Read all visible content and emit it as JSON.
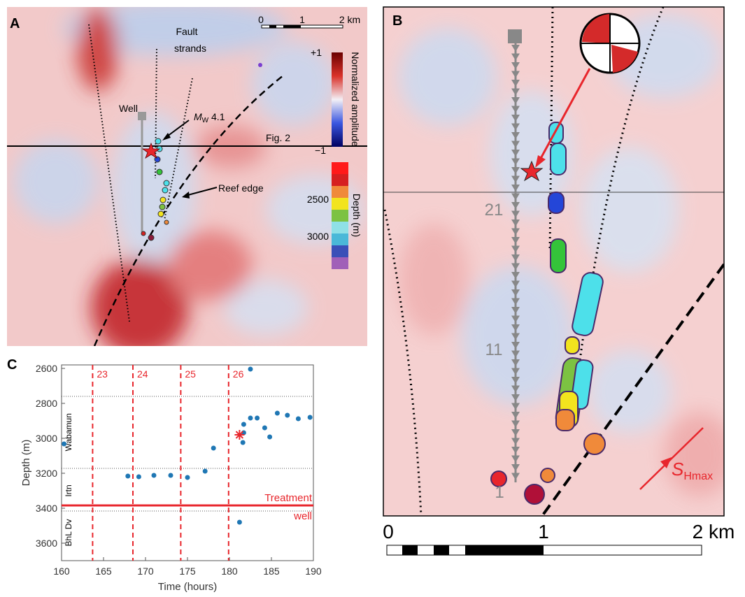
{
  "panel_a": {
    "label": "A",
    "scale": [
      "0",
      "1",
      "2 km"
    ],
    "fault_label": [
      "Fault",
      "strands"
    ],
    "well": "Well",
    "event": {
      "m": "M",
      "sub": "W",
      "rest": " 4.1"
    },
    "section": "Fig. 2",
    "reef": "Reef edge",
    "colorbar": {
      "top": "+1",
      "bottom": "−1",
      "title": "Normalized amplitude"
    },
    "depth_bar": {
      "ticks": [
        "2500",
        "3000"
      ],
      "title": "Depth (m)"
    }
  },
  "panel_b": {
    "label": "B",
    "stage_labels": [
      "21",
      "11",
      "1"
    ],
    "scale": [
      "0",
      "1",
      "2 km"
    ],
    "stress": {
      "main": "S",
      "sub": "Hmax"
    }
  },
  "chart_data": {
    "type": "scatter",
    "panel": "C",
    "xlabel": "Time (hours)",
    "ylabel": "Depth (m)",
    "xlim": [
      160,
      190
    ],
    "ylim": [
      2580,
      3700
    ],
    "y_reversed": true,
    "xticks": [
      160,
      165,
      170,
      175,
      180,
      185,
      190
    ],
    "yticks": [
      2600,
      2800,
      3000,
      3200,
      3400,
      3600
    ],
    "color": "#1f77b4",
    "x": [
      160.3,
      167.9,
      169.2,
      171,
      173,
      175,
      177.1,
      178.1,
      181.6,
      181.7,
      181.7,
      182.5,
      182.5,
      183.3,
      184.2,
      184.8,
      185.7,
      186.9,
      188.2,
      189.6,
      181.2
    ],
    "y": [
      3032,
      3216,
      3220,
      3212,
      3212,
      3224,
      3188,
      3056,
      3024,
      2968,
      2920,
      2604,
      2884,
      2884,
      2940,
      2992,
      2856,
      2868,
      2888,
      2880,
      3480
    ],
    "event": {
      "x": 181.2,
      "y": 2980,
      "color": "#e8262c"
    },
    "stages": [
      {
        "label": "23",
        "x": 163.7
      },
      {
        "label": "24",
        "x": 168.5
      },
      {
        "label": "25",
        "x": 174.2
      },
      {
        "label": "26",
        "x": 179.9
      }
    ],
    "stage_color": "#e8262c",
    "boundaries": [
      2760,
      3172,
      3416
    ],
    "formations": [
      {
        "label": "Wabamun",
        "y": 2965
      },
      {
        "label": "Irtn",
        "y": 3300
      },
      {
        "label": "BhL Dv",
        "y": 3540
      }
    ],
    "treatment_well": {
      "label": [
        "Treatment",
        "well"
      ],
      "y": 3384,
      "color": "#e8262c"
    }
  }
}
